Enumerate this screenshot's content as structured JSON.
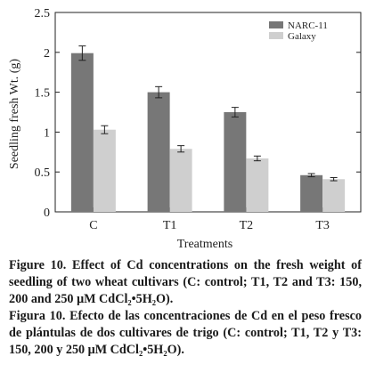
{
  "chart_data": {
    "type": "bar",
    "categories": [
      "C",
      "T1",
      "T2",
      "T3"
    ],
    "series": [
      {
        "name": "NARC-11",
        "values": [
          1.99,
          1.5,
          1.25,
          0.46
        ],
        "errors": [
          0.09,
          0.07,
          0.06,
          0.02
        ],
        "color": "#777777"
      },
      {
        "name": "Galaxy",
        "values": [
          1.03,
          0.79,
          0.67,
          0.41
        ],
        "errors": [
          0.05,
          0.04,
          0.03,
          0.02
        ],
        "color": "#cfcfcf"
      }
    ],
    "xlabel": "Treatments",
    "ylabel": "Seedling fresh Wt. (g)",
    "ylim": [
      0,
      2.5
    ],
    "yticks": [
      "0",
      "0.5",
      "1",
      "1.5",
      "2",
      "2.5"
    ],
    "legend_position": "top-right"
  },
  "caption_en": {
    "label": "Figure 10.",
    "text": "Effect of Cd concentrations on the fresh weight of seedling of two wheat cultivars (C: control; T1, T2 and T3: 150, 200 and 250 μM CdCl₂•5H₂O)."
  },
  "caption_es": {
    "label": "Figura 10.",
    "text": "Efecto de las concentraciones de Cd en el peso fresco de plántulas de dos cultivares de trigo (C: control; T1, T2 y T3: 150, 200 y 250 μM CdCl₂•5H₂O)."
  }
}
